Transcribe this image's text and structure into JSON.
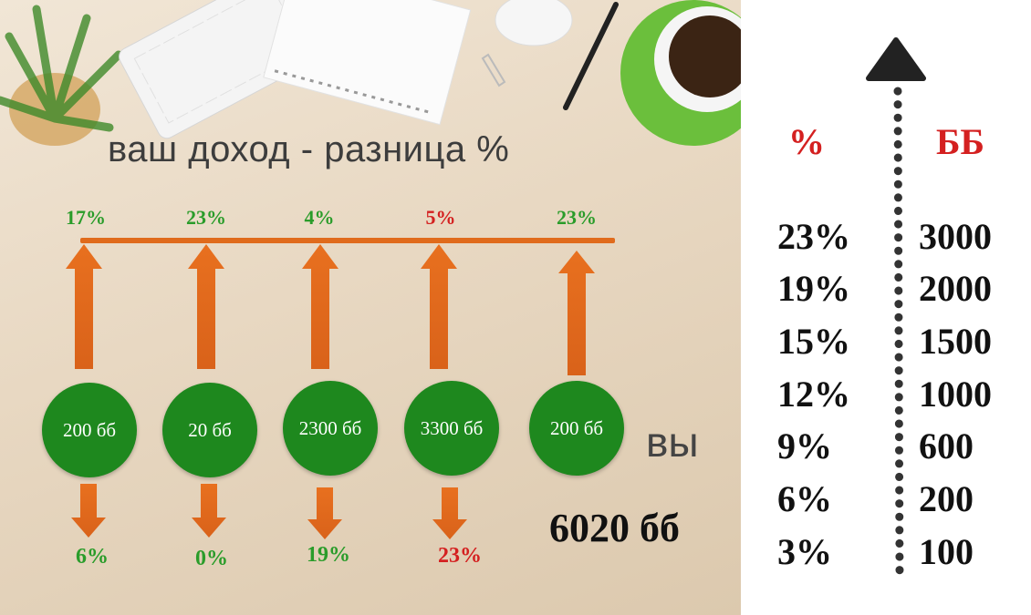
{
  "title": "ваш доход - разница %",
  "you_label": "вы",
  "total": "6020 бб",
  "colors": {
    "arrow": "#e06b1c",
    "circle": "#1e881e",
    "green_text": "#2a9c2a",
    "red_text": "#d42020"
  },
  "opponents": [
    {
      "top_pct": "17%",
      "top_color": "green",
      "amount": "200 бб",
      "bottom_pct": "6%",
      "bottom_color": "green"
    },
    {
      "top_pct": "23%",
      "top_color": "green",
      "amount": "20 бб",
      "bottom_pct": "0%",
      "bottom_color": "green"
    },
    {
      "top_pct": "4%",
      "top_color": "green",
      "amount": "2300 бб",
      "bottom_pct": "19%",
      "bottom_color": "green"
    },
    {
      "top_pct": "5%",
      "top_color": "red",
      "amount": "3300 бб",
      "bottom_pct": "23%",
      "bottom_color": "red"
    },
    {
      "top_pct": "23%",
      "top_color": "green",
      "amount": "200 бб"
    }
  ],
  "scale": {
    "header_pct": "%",
    "header_bb": "ББ",
    "rows": [
      {
        "pct": "23%",
        "bb": "3000"
      },
      {
        "pct": "19%",
        "bb": "2000"
      },
      {
        "pct": "15%",
        "bb": "1500"
      },
      {
        "pct": "12%",
        "bb": "1000"
      },
      {
        "pct": "9%",
        "bb": "600"
      },
      {
        "pct": "6%",
        "bb": "200"
      },
      {
        "pct": "3%",
        "bb": "100"
      }
    ]
  }
}
